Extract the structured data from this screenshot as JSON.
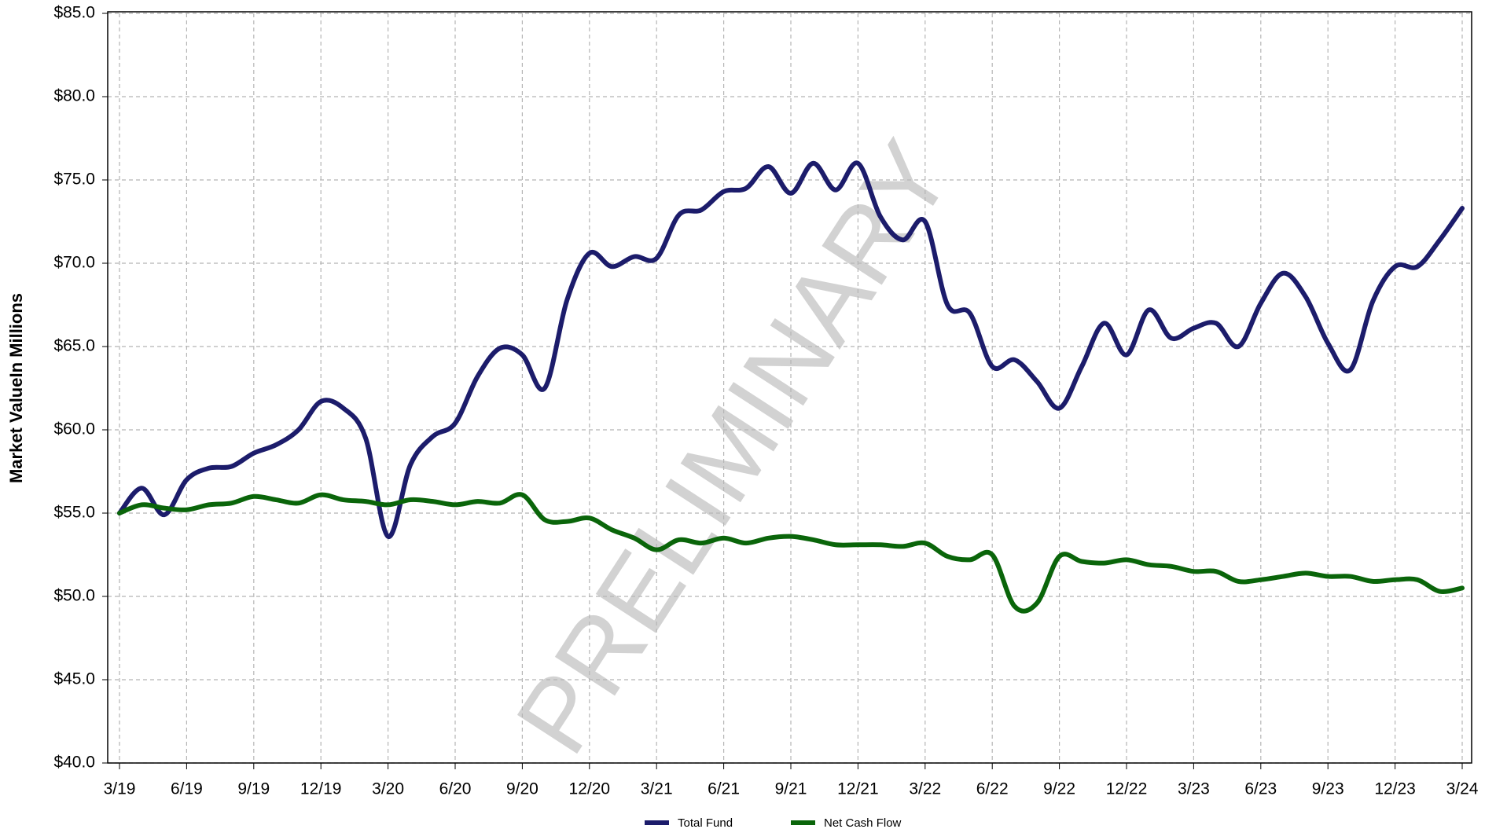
{
  "chart_data": {
    "type": "line",
    "y_label": "Market ValueIn Millions",
    "annotation": "PRELIMINARY",
    "categories": [
      "3/19",
      null,
      null,
      "6/19",
      null,
      null,
      "9/19",
      null,
      null,
      "12/19",
      null,
      null,
      "3/20",
      null,
      null,
      "6/20",
      null,
      null,
      "9/20",
      null,
      null,
      "12/20",
      null,
      null,
      "3/21",
      null,
      null,
      "6/21",
      null,
      null,
      "9/21",
      null,
      null,
      "12/21",
      null,
      null,
      "3/22",
      null,
      null,
      "6/22",
      null,
      null,
      "9/22",
      null,
      null,
      "12/22",
      null,
      null,
      "3/23",
      null,
      null,
      "6/23",
      null,
      null,
      "9/23",
      null,
      null,
      "12/23",
      null,
      null,
      "3/24"
    ],
    "series": [
      {
        "name": "Total Fund",
        "color": "#1c1c6b",
        "values": [
          55.0,
          56.5,
          54.9,
          57.0,
          57.7,
          57.8,
          58.6,
          59.1,
          60.0,
          61.7,
          61.3,
          59.5,
          53.6,
          57.9,
          59.6,
          60.4,
          63.2,
          64.9,
          64.5,
          62.5,
          67.8,
          70.6,
          69.8,
          70.4,
          70.3,
          72.9,
          73.2,
          74.3,
          74.5,
          75.8,
          74.2,
          76.0,
          74.4,
          76.0,
          72.8,
          71.4,
          72.5,
          67.5,
          67.0,
          63.8,
          64.2,
          62.9,
          61.3,
          63.8,
          66.4,
          64.5,
          67.2,
          65.5,
          66.1,
          66.4,
          65.0,
          67.6,
          69.4,
          68.0,
          65.2,
          63.6,
          67.7,
          69.8,
          69.8,
          71.4,
          73.3
        ]
      },
      {
        "name": "Net Cash Flow",
        "color": "#0a650a",
        "values": [
          55.0,
          55.5,
          55.3,
          55.2,
          55.5,
          55.6,
          56.0,
          55.8,
          55.6,
          56.1,
          55.8,
          55.7,
          55.5,
          55.8,
          55.7,
          55.5,
          55.7,
          55.6,
          56.1,
          54.6,
          54.5,
          54.7,
          54.0,
          53.5,
          52.8,
          53.4,
          53.2,
          53.5,
          53.2,
          53.5,
          53.6,
          53.4,
          53.1,
          53.1,
          53.1,
          53.0,
          53.2,
          52.4,
          52.2,
          52.5,
          49.4,
          49.6,
          52.4,
          52.1,
          52.0,
          52.2,
          51.9,
          51.8,
          51.5,
          51.5,
          50.9,
          51.0,
          51.2,
          51.4,
          51.2,
          51.2,
          50.9,
          51.0,
          51.0,
          50.3,
          50.5
        ]
      }
    ],
    "ylim": [
      40,
      85
    ],
    "yticks": [
      {
        "value": 40,
        "label": "$40.0"
      },
      {
        "value": 45,
        "label": "$45.0"
      },
      {
        "value": 50,
        "label": "$50.0"
      },
      {
        "value": 55,
        "label": "$55.0"
      },
      {
        "value": 60,
        "label": "$60.0"
      },
      {
        "value": 65,
        "label": "$65.0"
      },
      {
        "value": 70,
        "label": "$70.0"
      },
      {
        "value": 75,
        "label": "$75.0"
      },
      {
        "value": 80,
        "label": "$80.0"
      },
      {
        "value": 85,
        "label": "$85.0"
      }
    ],
    "grid": true,
    "legend": "bottom"
  }
}
